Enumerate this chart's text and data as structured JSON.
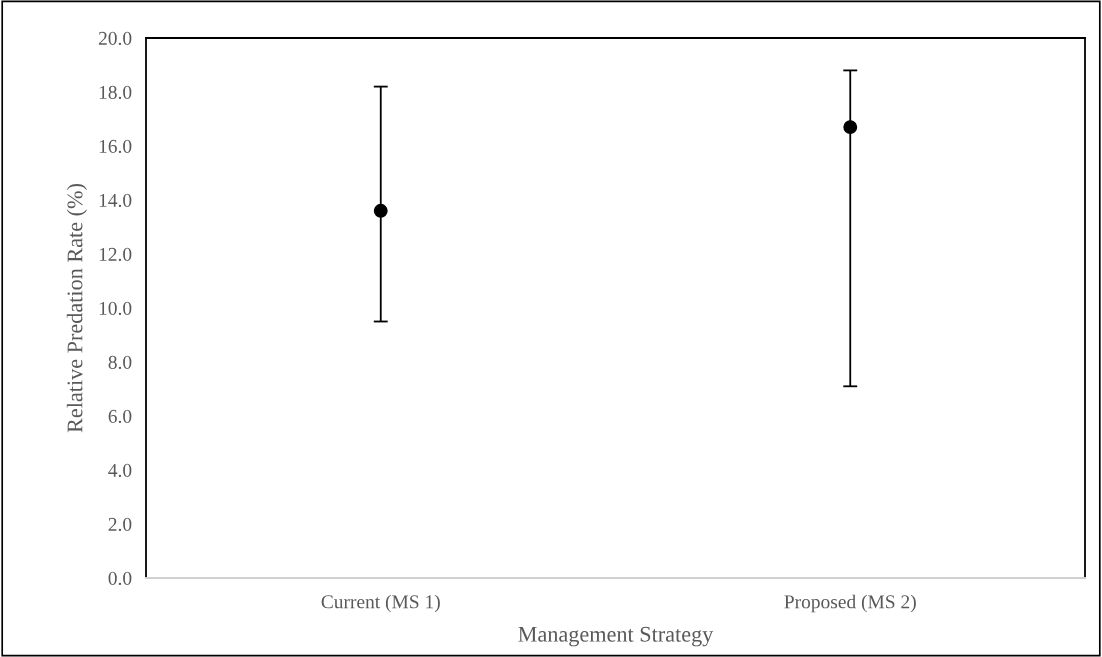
{
  "chart_data": {
    "type": "scatter",
    "xlabel": "Management Strategy",
    "ylabel": "Relative Predation Rate (%)",
    "categories": [
      "Current (MS 1)",
      "Proposed (MS 2)"
    ],
    "values": [
      13.6,
      16.7
    ],
    "errors": [
      [
        9.5,
        18.2
      ],
      [
        7.1,
        18.8
      ]
    ],
    "color": "#000000",
    "marker": "circle",
    "ylim": [
      0,
      20
    ],
    "yticks": [
      {
        "value": 0,
        "label": "0.0"
      },
      {
        "value": 2,
        "label": "2.0"
      },
      {
        "value": 4,
        "label": "4.0"
      },
      {
        "value": 6,
        "label": "6.0"
      },
      {
        "value": 8,
        "label": "8.0"
      },
      {
        "value": 10,
        "label": "10.0"
      },
      {
        "value": 12,
        "label": "12.0"
      },
      {
        "value": 14,
        "label": "14.0"
      },
      {
        "value": 16,
        "label": "16.0"
      },
      {
        "value": 18,
        "label": "18.0"
      },
      {
        "value": 20,
        "label": "20.0"
      }
    ],
    "grid": false,
    "legend": false
  }
}
